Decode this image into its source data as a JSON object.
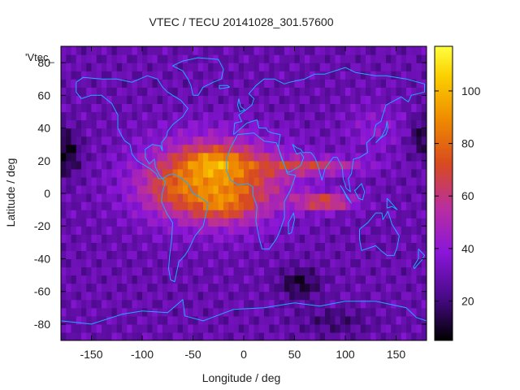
{
  "chart_data": {
    "type": "heatmap",
    "title": "VTEC / TECU 20141028_301.57600",
    "xlabel": "Longitude / deg",
    "ylabel": "Latitude / deg",
    "key_label": "'Vtec_",
    "xlim": [
      -180,
      180
    ],
    "ylim": [
      -90,
      90
    ],
    "x_ticks": [
      -150,
      -100,
      -50,
      0,
      50,
      100,
      150
    ],
    "y_ticks": [
      -80,
      -60,
      -40,
      -20,
      0,
      20,
      40,
      60,
      80
    ],
    "colorbar": {
      "min": 5,
      "max": 117,
      "ticks": [
        20,
        40,
        60,
        80,
        100
      ]
    },
    "palette": [
      "#000000",
      "#4a0a8a",
      "#8a16d8",
      "#b92ea0",
      "#d84a20",
      "#ef8a00",
      "#fbd000",
      "#ffff40"
    ],
    "coastline_color": "#1eaaff",
    "grid": false,
    "cells": {
      "lon_step": 5,
      "lat_step": 5,
      "field": "Modeled VTEC: background ~28 TECU, equatorial anomaly crests near ±15° lat centered on the sunlit hemisphere (~-30° lon), peaks ~105 TECU near (-30°, 20°) and (-20°, -5°), eastward extension to ~85 TECU near 75–90° lon, low values (~5–12 TECU) near (-175°, 25°) and (55°, -55°)"
    }
  }
}
